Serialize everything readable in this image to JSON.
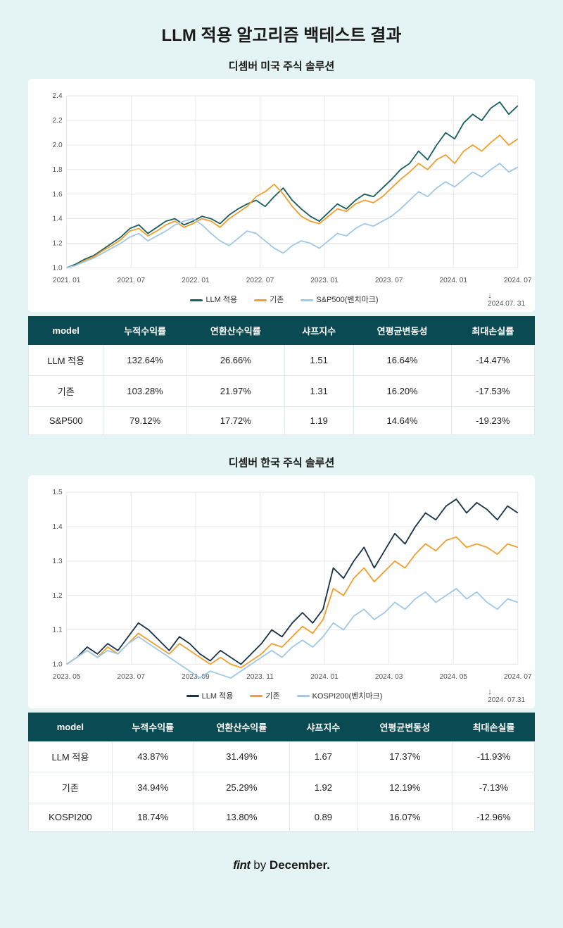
{
  "main_title": "LLM 적용 알고리즘 백테스트 결과",
  "footer": {
    "fint": "fint",
    "by": " by ",
    "dec": "December."
  },
  "colors": {
    "series1": "#1b6060",
    "series2": "#f0a030",
    "series3": "#a0c8e8",
    "grid": "#e8e8e8",
    "header_bg": "#0a4a52"
  },
  "chart1": {
    "title": "디셈버 미국 주식 솔루션",
    "end_date": "2024.07. 31",
    "ylim": [
      1.0,
      2.4
    ],
    "ytick_step": 0.2,
    "x_labels": [
      "2021. 01",
      "2021. 07",
      "2022. 01",
      "2022. 07",
      "2023. 01",
      "2023. 07",
      "2024. 01",
      "2024. 07"
    ],
    "legend": [
      "LLM 적용",
      "기존",
      "S&P500(벤치마크)"
    ],
    "series": [
      {
        "name": "LLM 적용",
        "color": "#1b6060",
        "values": [
          1.0,
          1.03,
          1.07,
          1.1,
          1.15,
          1.2,
          1.25,
          1.32,
          1.35,
          1.28,
          1.33,
          1.38,
          1.4,
          1.35,
          1.38,
          1.42,
          1.4,
          1.36,
          1.43,
          1.48,
          1.52,
          1.55,
          1.5,
          1.58,
          1.65,
          1.55,
          1.48,
          1.42,
          1.38,
          1.45,
          1.52,
          1.48,
          1.55,
          1.6,
          1.58,
          1.65,
          1.72,
          1.8,
          1.85,
          1.95,
          1.88,
          2.0,
          2.1,
          2.05,
          2.18,
          2.25,
          2.2,
          2.3,
          2.35,
          2.25,
          2.32
        ]
      },
      {
        "name": "기존",
        "color": "#f0a030",
        "values": [
          1.0,
          1.02,
          1.06,
          1.09,
          1.14,
          1.18,
          1.23,
          1.3,
          1.32,
          1.26,
          1.3,
          1.35,
          1.38,
          1.33,
          1.36,
          1.4,
          1.38,
          1.33,
          1.4,
          1.45,
          1.5,
          1.58,
          1.62,
          1.68,
          1.6,
          1.5,
          1.42,
          1.38,
          1.36,
          1.42,
          1.48,
          1.46,
          1.52,
          1.55,
          1.53,
          1.58,
          1.65,
          1.72,
          1.78,
          1.85,
          1.8,
          1.88,
          1.92,
          1.85,
          1.95,
          2.0,
          1.95,
          2.02,
          2.08,
          2.0,
          2.05
        ]
      },
      {
        "name": "S&P500",
        "color": "#a0c8e8",
        "values": [
          1.0,
          1.02,
          1.05,
          1.08,
          1.12,
          1.16,
          1.2,
          1.25,
          1.28,
          1.22,
          1.26,
          1.3,
          1.35,
          1.38,
          1.4,
          1.35,
          1.28,
          1.22,
          1.18,
          1.24,
          1.3,
          1.28,
          1.22,
          1.16,
          1.12,
          1.18,
          1.22,
          1.2,
          1.16,
          1.22,
          1.28,
          1.26,
          1.32,
          1.36,
          1.34,
          1.38,
          1.42,
          1.48,
          1.55,
          1.62,
          1.58,
          1.65,
          1.7,
          1.66,
          1.72,
          1.78,
          1.74,
          1.8,
          1.85,
          1.78,
          1.82
        ]
      }
    ]
  },
  "chart2": {
    "title": "디셈버 한국 주식 솔루션",
    "end_date": "2024. 07.31",
    "ylim": [
      1.0,
      1.5
    ],
    "ytick_step": 0.1,
    "x_labels": [
      "2023. 05",
      "2023. 07",
      "2023. 09",
      "2023. 11",
      "2024. 01",
      "2024. 03",
      "2024. 05",
      "2024. 07"
    ],
    "legend": [
      "LLM 적용",
      "기존",
      "KOSPI200(벤치마크)"
    ],
    "series": [
      {
        "name": "LLM 적용",
        "color": "#18334a",
        "values": [
          1.0,
          1.02,
          1.05,
          1.03,
          1.06,
          1.04,
          1.08,
          1.12,
          1.1,
          1.07,
          1.04,
          1.08,
          1.06,
          1.03,
          1.01,
          1.04,
          1.02,
          1.0,
          1.03,
          1.06,
          1.1,
          1.08,
          1.12,
          1.15,
          1.12,
          1.16,
          1.28,
          1.25,
          1.3,
          1.34,
          1.28,
          1.33,
          1.38,
          1.35,
          1.4,
          1.44,
          1.42,
          1.46,
          1.48,
          1.44,
          1.47,
          1.45,
          1.42,
          1.46,
          1.44
        ]
      },
      {
        "name": "기존",
        "color": "#f0a030",
        "values": [
          1.0,
          1.02,
          1.04,
          1.02,
          1.05,
          1.03,
          1.06,
          1.09,
          1.07,
          1.05,
          1.03,
          1.06,
          1.04,
          1.02,
          1.0,
          1.02,
          1.0,
          0.99,
          1.01,
          1.03,
          1.06,
          1.05,
          1.08,
          1.11,
          1.09,
          1.13,
          1.22,
          1.2,
          1.25,
          1.28,
          1.24,
          1.27,
          1.3,
          1.28,
          1.32,
          1.35,
          1.33,
          1.36,
          1.37,
          1.34,
          1.35,
          1.34,
          1.32,
          1.35,
          1.34
        ]
      },
      {
        "name": "KOSPI200",
        "color": "#a0c8e8",
        "values": [
          1.0,
          1.02,
          1.04,
          1.02,
          1.04,
          1.03,
          1.06,
          1.08,
          1.06,
          1.04,
          1.02,
          1.0,
          0.98,
          0.96,
          0.98,
          0.97,
          0.96,
          0.98,
          1.0,
          1.02,
          1.04,
          1.02,
          1.05,
          1.07,
          1.05,
          1.08,
          1.12,
          1.1,
          1.14,
          1.16,
          1.13,
          1.15,
          1.18,
          1.16,
          1.19,
          1.21,
          1.18,
          1.2,
          1.22,
          1.19,
          1.21,
          1.18,
          1.16,
          1.19,
          1.18
        ]
      }
    ]
  },
  "table1": {
    "headers": [
      "model",
      "누적수익률",
      "연환산수익률",
      "샤프지수",
      "연평균변동성",
      "최대손실률"
    ],
    "rows": [
      [
        "LLM 적용",
        "132.64%",
        "26.66%",
        "1.51",
        "16.64%",
        "-14.47%"
      ],
      [
        "기존",
        "103.28%",
        "21.97%",
        "1.31",
        "16.20%",
        "-17.53%"
      ],
      [
        "S&P500",
        "79.12%",
        "17.72%",
        "1.19",
        "14.64%",
        "-19.23%"
      ]
    ]
  },
  "table2": {
    "headers": [
      "model",
      "누적수익률",
      "연환산수익률",
      "샤프지수",
      "연평균변동성",
      "최대손실률"
    ],
    "rows": [
      [
        "LLM 적용",
        "43.87%",
        "31.49%",
        "1.67",
        "17.37%",
        "-11.93%"
      ],
      [
        "기존",
        "34.94%",
        "25.29%",
        "1.92",
        "12.19%",
        "-7.13%"
      ],
      [
        "KOSPI200",
        "18.74%",
        "13.80%",
        "0.89",
        "16.07%",
        "-12.96%"
      ]
    ]
  }
}
